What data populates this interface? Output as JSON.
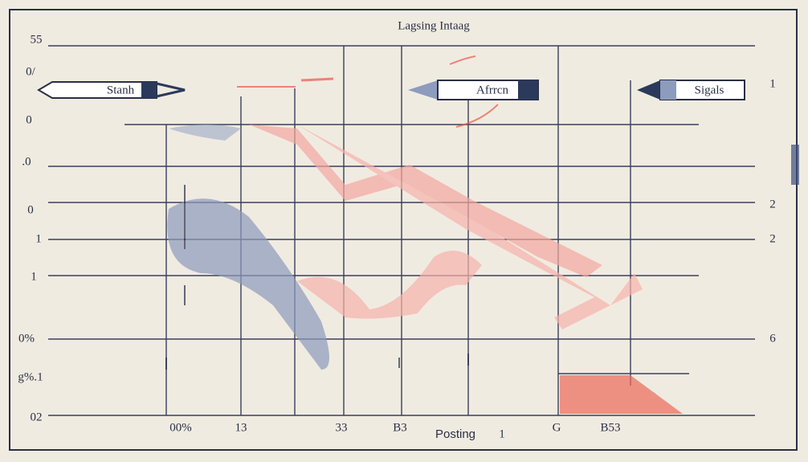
{
  "title": "Lagsing Intaag",
  "left_labels": [
    "55",
    "0/",
    "0",
    ".0",
    "0",
    "1",
    "1",
    "0%",
    "g%.1",
    "02"
  ],
  "right_labels": [
    "1",
    "2",
    "2",
    "6"
  ],
  "bottom_labels": [
    "00%",
    "13",
    "33",
    "B3",
    "G",
    "B53"
  ],
  "footer": {
    "label": "Posting",
    "number": "1"
  },
  "callouts": [
    "Stanh",
    "Afrrcn",
    "Sigals"
  ]
}
